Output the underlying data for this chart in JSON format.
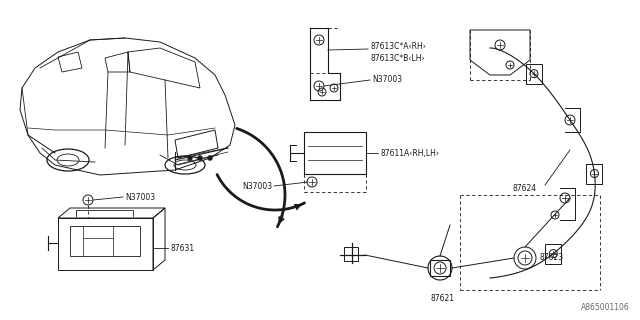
{
  "bg_color": "#ffffff",
  "diagram_id": "A865001106",
  "line_color": "#1a1a1a",
  "text_color": "#1a1a1a",
  "label_fontsize": 6.0,
  "small_fontsize": 5.5,
  "parts_labels": {
    "87613CA": "87613C*A<RH>",
    "87613CB": "87613C*B<LH>",
    "N37003_bracket": "N37003",
    "87611A": "87611A<RH,LH>",
    "N37003_module": "N37003",
    "87624": "87624",
    "N37003_ecu": "N37003",
    "87631": "87631",
    "87621": "87621",
    "87623": "87623"
  }
}
